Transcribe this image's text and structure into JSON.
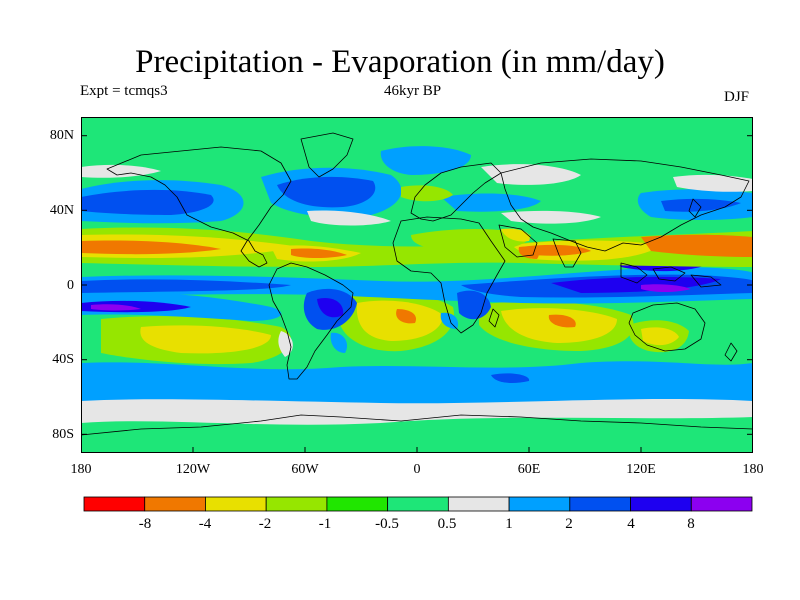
{
  "title": "Precipitation - Evaporation (in mm/day)",
  "experiment": "Expt = tcmqs3",
  "period": "46kyr BP",
  "season": "DJF",
  "lat_ticks": [
    "80N",
    "40N",
    "0",
    "40S",
    "80S"
  ],
  "lon_ticks": [
    "180",
    "120W",
    "60W",
    "0",
    "60E",
    "120E",
    "180"
  ],
  "colorbar": {
    "colors": [
      "#ff0000",
      "#f07800",
      "#e8e000",
      "#96e600",
      "#20e600",
      "#1ee678",
      "#e6e6e6",
      "#00a0ff",
      "#0050f0",
      "#1e00f0",
      "#8c00f0"
    ],
    "labels": [
      "-8",
      "-4",
      "-2",
      "-1",
      "-0.5",
      "0.5",
      "1",
      "2",
      "4",
      "8"
    ]
  },
  "palette": {
    "base": "#1ee678",
    "land_dry": "#96e600",
    "coast": "#000000"
  }
}
